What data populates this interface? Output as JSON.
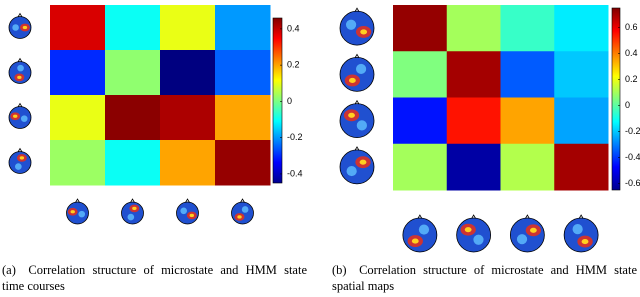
{
  "chart_data": [
    {
      "type": "heatmap",
      "caption": "(a) Correlation structure of microstate and HMM state time courses",
      "colormap": "jet",
      "values": [
        [
          0.38,
          -0.1,
          0.1,
          -0.2
        ],
        [
          -0.3,
          0.02,
          -0.45,
          -0.25
        ],
        [
          0.1,
          0.45,
          0.42,
          0.2
        ],
        [
          0.03,
          -0.1,
          0.2,
          0.44
        ]
      ],
      "zlim": [
        -0.45,
        0.46
      ],
      "zticks": [
        0.4,
        0.2,
        0,
        -0.2,
        -0.4
      ]
    },
    {
      "type": "heatmap",
      "caption": "(b) Correlation structure of microstate and HMM state spatial maps",
      "colormap": "jet",
      "values": [
        [
          0.72,
          0.1,
          -0.05,
          -0.15
        ],
        [
          0.05,
          0.7,
          -0.35,
          -0.2
        ],
        [
          -0.45,
          0.55,
          0.35,
          -0.25
        ],
        [
          0.1,
          -0.6,
          0.12,
          0.7
        ]
      ],
      "zlim": [
        -0.65,
        0.75
      ],
      "zticks": [
        0.6,
        0.4,
        0.2,
        0,
        -0.2,
        -0.4,
        -0.6
      ]
    }
  ]
}
